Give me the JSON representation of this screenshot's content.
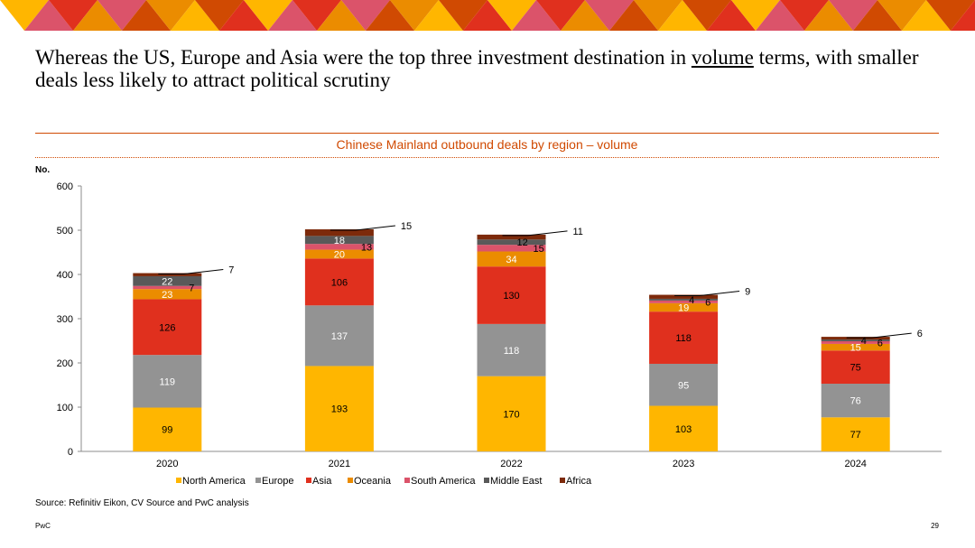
{
  "headline": {
    "before": "Whereas the US, Europe and Asia were the top three investment destination in ",
    "underlined": "volume",
    "after": " terms, with smaller deals less likely to attract political scrutiny"
  },
  "colors": {
    "banner": [
      "#ffb600",
      "#e0301e",
      "#db536a",
      "#eb8c00",
      "#d04a02"
    ],
    "accent": "#d04a02"
  },
  "chart_data": {
    "type": "bar",
    "stacked": true,
    "title": "Chinese Mainland outbound deals by region – volume",
    "ylabel": "No.",
    "xlabel": "",
    "ylim": [
      0,
      600
    ],
    "yticks": [
      0,
      100,
      200,
      300,
      400,
      500,
      600
    ],
    "grid": false,
    "legend_position": "bottom",
    "categories": [
      "2020",
      "2021",
      "2022",
      "2023",
      "2024"
    ],
    "series": [
      {
        "name": "North America",
        "color": "#ffb600",
        "label_color": "#000000",
        "values": [
          99,
          193,
          170,
          103,
          77
        ]
      },
      {
        "name": "Europe",
        "color": "#939393",
        "label_color": "#ffffff",
        "values": [
          119,
          137,
          118,
          95,
          76
        ]
      },
      {
        "name": "Asia",
        "color": "#e0301e",
        "label_color": "#000000",
        "values": [
          126,
          106,
          130,
          118,
          75
        ]
      },
      {
        "name": "Oceania",
        "color": "#eb8c00",
        "label_color": "#ffffff",
        "values": [
          23,
          20,
          34,
          19,
          15
        ]
      },
      {
        "name": "South America",
        "color": "#db536a",
        "label_color": "#000000",
        "values": [
          7,
          13,
          15,
          6,
          6
        ]
      },
      {
        "name": "Middle East",
        "color": "#595959",
        "label_color": "#ffffff",
        "values": [
          22,
          18,
          12,
          4,
          4
        ]
      },
      {
        "name": "Africa",
        "color": "#7d2a0b",
        "label_color": "#000000",
        "values": [
          7,
          15,
          11,
          9,
          6
        ]
      }
    ]
  },
  "source": "Source: Refinitiv Eikon, CV Source and PwC analysis",
  "footer": {
    "brand": "PwC",
    "page": "29"
  }
}
